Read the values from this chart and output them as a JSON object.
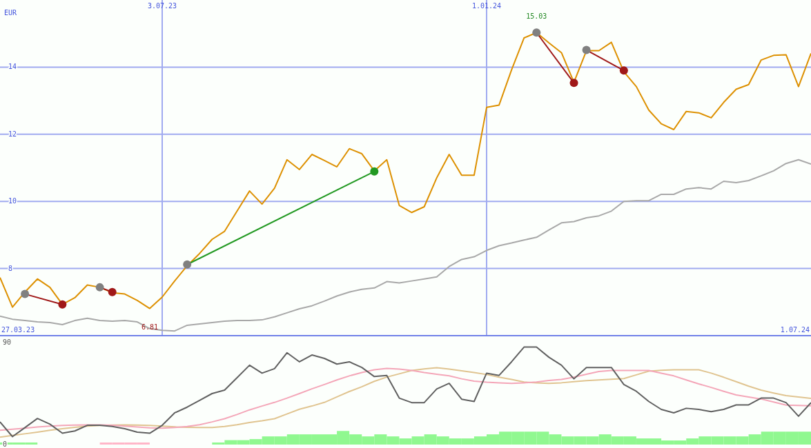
{
  "chart_data": [
    {
      "type": "line",
      "ylabel": "EUR",
      "xlim": [
        "2023-04-03",
        "2024-07-01"
      ],
      "xticks": [
        {
          "value": "2023-07-03",
          "label": "3.07.23"
        },
        {
          "value": "2024-01-01",
          "label": "1.01.24"
        }
      ],
      "ylim": [
        6,
        16
      ],
      "yticks": [
        8,
        10,
        12,
        14
      ],
      "grid": true,
      "x": [
        "2023-04-03",
        "2023-04-10",
        "2023-04-17",
        "2023-04-24",
        "2023-05-01",
        "2023-05-08",
        "2023-05-15",
        "2023-05-22",
        "2023-05-29",
        "2023-06-05",
        "2023-06-12",
        "2023-06-19",
        "2023-06-26",
        "2023-07-03",
        "2023-07-10",
        "2023-07-17",
        "2023-07-24",
        "2023-07-31",
        "2023-08-07",
        "2023-08-14",
        "2023-08-21",
        "2023-08-28",
        "2023-09-04",
        "2023-09-11",
        "2023-09-18",
        "2023-09-25",
        "2023-10-02",
        "2023-10-09",
        "2023-10-16",
        "2023-10-23",
        "2023-10-30",
        "2023-11-06",
        "2023-11-13",
        "2023-11-20",
        "2023-11-27",
        "2023-12-04",
        "2023-12-11",
        "2023-12-18",
        "2023-12-25",
        "2024-01-01",
        "2024-01-08",
        "2024-01-15",
        "2024-01-22",
        "2024-01-29",
        "2024-02-05",
        "2024-02-12",
        "2024-02-19",
        "2024-02-26",
        "2024-03-04",
        "2024-03-11",
        "2024-03-18",
        "2024-03-25",
        "2024-04-01",
        "2024-04-08",
        "2024-04-15",
        "2024-04-22",
        "2024-04-29",
        "2024-05-06",
        "2024-05-13",
        "2024-05-20",
        "2024-05-27",
        "2024-06-03",
        "2024-06-10",
        "2024-06-17",
        "2024-06-24",
        "2024-07-01"
      ],
      "series": [
        {
          "color": "#a8a8a8",
          "values": [
            6.58,
            6.49,
            6.45,
            6.41,
            6.39,
            6.33,
            6.45,
            6.52,
            6.45,
            6.43,
            6.45,
            6.41,
            6.21,
            6.16,
            6.14,
            6.31,
            6.35,
            6.39,
            6.43,
            6.45,
            6.45,
            6.47,
            6.56,
            6.68,
            6.8,
            6.89,
            7.03,
            7.18,
            7.3,
            7.38,
            7.42,
            7.61,
            7.57,
            7.63,
            7.69,
            7.75,
            8.06,
            8.27,
            8.35,
            8.54,
            8.68,
            8.76,
            8.85,
            8.93,
            9.15,
            9.36,
            9.4,
            9.51,
            9.57,
            9.71,
            10.0,
            10.02,
            10.02,
            10.21,
            10.21,
            10.37,
            10.41,
            10.37,
            10.6,
            10.56,
            10.62,
            10.76,
            10.91,
            11.13,
            11.24,
            11.11
          ]
        },
        {
          "color": "#dd9000",
          "values": [
            7.73,
            6.85,
            7.3,
            7.69,
            7.44,
            6.93,
            7.13,
            7.51,
            7.44,
            7.28,
            7.24,
            7.05,
            6.81,
            7.15,
            7.63,
            8.08,
            8.45,
            8.87,
            9.11,
            9.71,
            10.31,
            9.92,
            10.39,
            11.24,
            10.95,
            11.4,
            11.22,
            11.03,
            11.57,
            11.42,
            10.91,
            11.24,
            9.88,
            9.67,
            9.84,
            10.7,
            11.4,
            10.78,
            10.78,
            12.8,
            12.87,
            13.92,
            14.87,
            15.03,
            14.72,
            14.43,
            13.55,
            14.49,
            14.49,
            14.74,
            13.86,
            13.42,
            12.72,
            12.31,
            12.14,
            12.68,
            12.64,
            12.49,
            12.95,
            13.34,
            13.48,
            14.21,
            14.35,
            14.37,
            13.42,
            14.41
          ]
        },
        {
          "color": "#a01818",
          "x": [
            "2023-04-17",
            "2023-05-08"
          ],
          "values": [
            7.24,
            6.93
          ]
        },
        {
          "color": "#a01818",
          "x": [
            "2023-05-29",
            "2023-06-05"
          ],
          "values": [
            7.44,
            7.3
          ]
        },
        {
          "color": "#229922",
          "x": [
            "2023-07-17",
            "2023-10-30"
          ],
          "values": [
            8.12,
            10.89
          ]
        },
        {
          "color": "#a01818",
          "x": [
            "2024-01-29",
            "2024-02-19"
          ],
          "values": [
            15.03,
            13.53
          ]
        },
        {
          "color": "#a01818",
          "x": [
            "2024-02-26",
            "2024-03-18"
          ],
          "values": [
            14.51,
            13.9
          ]
        },
        {
          "type": "scatter",
          "color": "#808080",
          "x": [
            "2023-04-17",
            "2023-05-29",
            "2023-07-17",
            "2024-01-29",
            "2024-02-26"
          ],
          "values": [
            7.24,
            7.44,
            8.12,
            15.03,
            14.51
          ]
        },
        {
          "type": "scatter",
          "colors": [
            "#a01818",
            "#a01818",
            "#229922",
            "#a01818",
            "#a01818"
          ],
          "x": [
            "2023-05-08",
            "2023-06-05",
            "2023-10-30",
            "2024-02-19",
            "2024-03-18"
          ],
          "values": [
            6.93,
            7.3,
            10.89,
            13.53,
            13.9
          ]
        }
      ],
      "annotations": [
        "27.03.23",
        "1.07.24",
        {
          "text": "6.81",
          "x": "2023-06-26",
          "y": 6.81
        },
        {
          "text": "15.03",
          "x": "2024-01-29",
          "y": 15.03
        }
      ]
    },
    {
      "type": "line",
      "ylim": [
        0,
        90
      ],
      "yticks": [
        0,
        90
      ],
      "categories": [
        null,
        null,
        null,
        null,
        null,
        null,
        null,
        null,
        null,
        null,
        null,
        null,
        null,
        null,
        null,
        null,
        null,
        null,
        null,
        null,
        null,
        null,
        null,
        null,
        null,
        null,
        null,
        null,
        null,
        null,
        null,
        null,
        null,
        null,
        null,
        null,
        null,
        null,
        null,
        null,
        null,
        null,
        null,
        null,
        null,
        null,
        null,
        null,
        null,
        null,
        null,
        null,
        null,
        null,
        null,
        null,
        null,
        null,
        null,
        null,
        null,
        null,
        null,
        null,
        null,
        null
      ],
      "series": [
        {
          "type": "bar",
          "colors": [
            null,
            "#90f890",
            "#90f890",
            "#90f890",
            null,
            null,
            null,
            null,
            null,
            "#ffb6c8",
            "#ffb6c8",
            "#ffb6c8",
            "#ffb6c8",
            null,
            null,
            null,
            null,
            null,
            "#90f890",
            "#90f890",
            "#90f890",
            "#90f890",
            "#90f890",
            "#90f890",
            "#90f890",
            "#90f890",
            "#90f890",
            "#90f890",
            "#90f890",
            "#90f890",
            "#90f890",
            "#90f890",
            "#90f890",
            "#90f890",
            "#90f890",
            "#90f890",
            "#90f890",
            "#90f890",
            "#90f890",
            "#90f890",
            "#90f890",
            "#90f890",
            "#90f890",
            "#90f890",
            "#90f890",
            "#90f890",
            "#90f890",
            "#90f890",
            "#90f890",
            "#90f890",
            "#90f890",
            "#90f890",
            "#90f890",
            "#90f890",
            "#90f890",
            "#90f890",
            "#90f890",
            "#90f890",
            "#90f890",
            "#90f890",
            "#90f890",
            "#90f890",
            "#90f890",
            "#90f890",
            "#90f890",
            "#90f890"
          ],
          "values": [
            null,
            1.8,
            1.8,
            1.8,
            null,
            null,
            null,
            null,
            null,
            1.8,
            1.8,
            1.8,
            1.8,
            null,
            null,
            null,
            null,
            null,
            1.8,
            3.9,
            3.9,
            4.8,
            7.2,
            7.2,
            9,
            9,
            9,
            9,
            12,
            9,
            7.2,
            9,
            7.2,
            5.4,
            7.2,
            9,
            7.2,
            5.4,
            5.4,
            7.2,
            9,
            11.4,
            11.4,
            11.4,
            11.4,
            9,
            7.2,
            7.2,
            7.2,
            9,
            7.2,
            7.2,
            5.4,
            5.4,
            3.6,
            3.6,
            5.4,
            7.2,
            7.2,
            7.2,
            7.2,
            9,
            11.4,
            11.4,
            11.4,
            11.4
          ]
        },
        {
          "color": "#e0c490",
          "values": [
            6.6,
            8,
            9.5,
            11,
            12.6,
            14,
            15.2,
            16.2,
            16.8,
            17.2,
            17.4,
            17.2,
            16.8,
            16.2,
            15.6,
            15.2,
            15,
            15,
            16,
            17.5,
            19.5,
            21,
            22.8,
            27,
            31.2,
            34,
            37.2,
            42,
            46.8,
            51,
            55.8,
            59.5,
            62.4,
            65.4,
            66.8,
            67.8,
            66.6,
            65,
            63.5,
            61.8,
            59.5,
            57.5,
            55.2,
            54.5,
            54,
            54.5,
            55.5,
            56.4,
            57,
            57.6,
            58.2,
            61.5,
            64.8,
            65.5,
            66,
            66,
            66,
            63,
            59.4,
            55.5,
            51.5,
            48,
            45.5,
            43.2,
            42,
            40.8
          ]
        },
        {
          "color": "#f4a6b8",
          "values": [
            12.6,
            13.5,
            14.5,
            15.5,
            16.2,
            16.8,
            17.2,
            17.4,
            17.4,
            17,
            16.2,
            15.5,
            14.8,
            14.4,
            15,
            16,
            17.5,
            20,
            22.8,
            26.5,
            30.6,
            34,
            37.2,
            41,
            45,
            49.2,
            53,
            57,
            60.6,
            63.5,
            66,
            67.2,
            66.6,
            65.4,
            63.5,
            62,
            60.6,
            58,
            56,
            55,
            54.5,
            54,
            54.5,
            55.2,
            56.5,
            57.5,
            59.4,
            62,
            64.5,
            65.4,
            65.4,
            65.4,
            65.4,
            63,
            60.6,
            57,
            53.5,
            50.4,
            47,
            43.8,
            42,
            40.2,
            37.5,
            34.8,
            34.5,
            34.2
          ]
        },
        {
          "color": "#606060",
          "values": [
            20,
            7,
            15,
            23,
            18,
            10,
            12,
            17,
            17,
            16,
            14,
            11,
            10,
            17,
            28,
            33,
            39,
            45,
            48,
            59,
            70,
            63,
            67,
            81,
            73,
            79,
            76,
            71,
            73,
            68,
            60,
            61,
            41,
            37,
            37,
            49,
            54,
            40,
            38,
            63,
            61,
            73,
            86,
            86,
            77,
            70,
            58,
            68,
            68,
            68,
            53,
            47,
            38,
            31,
            28,
            32,
            31,
            29,
            31,
            35,
            35,
            41,
            41,
            37,
            25,
            37
          ]
        }
      ]
    }
  ]
}
